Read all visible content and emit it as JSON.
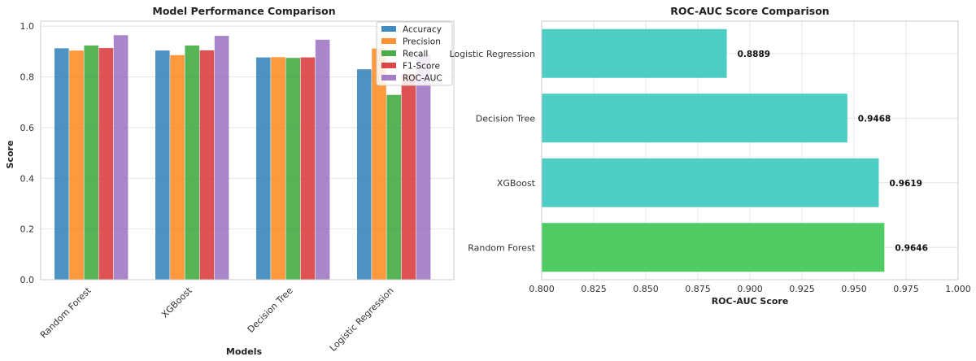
{
  "chart_data": [
    {
      "type": "bar",
      "title": "Model Performance Comparison",
      "xlabel": "Models",
      "ylabel": "Score",
      "ylim": [
        0,
        1.02
      ],
      "yticks": [
        "0.0",
        "0.2",
        "0.4",
        "0.6",
        "0.8",
        "1.0"
      ],
      "categories": [
        "Random Forest",
        "XGBoost",
        "Decision Tree",
        "Logistic Regression"
      ],
      "legend_position": "top-right",
      "grid": true,
      "series": [
        {
          "name": "Accuracy",
          "color": "#1f77b4",
          "values": [
            0.913,
            0.904,
            0.877,
            0.83
          ]
        },
        {
          "name": "Precision",
          "color": "#ff7f0e",
          "values": [
            0.904,
            0.886,
            0.878,
            0.912
          ]
        },
        {
          "name": "Recall",
          "color": "#2ca02c",
          "values": [
            0.924,
            0.924,
            0.875,
            0.729
          ]
        },
        {
          "name": "F1-Score",
          "color": "#d62728",
          "values": [
            0.914,
            0.905,
            0.877,
            0.812
          ]
        },
        {
          "name": "ROC-AUC",
          "color": "#9467bd",
          "values": [
            0.9646,
            0.9619,
            0.9468,
            0.8889
          ]
        }
      ]
    },
    {
      "type": "barh",
      "title": "ROC-AUC Score Comparison",
      "xlabel": "ROC-AUC Score",
      "ylabel": "",
      "xlim": [
        0.8,
        1.0
      ],
      "xticks": [
        "0.800",
        "0.825",
        "0.850",
        "0.875",
        "0.900",
        "0.925",
        "0.950",
        "0.975",
        "1.000"
      ],
      "categories": [
        "Random Forest",
        "XGBoost",
        "Decision Tree",
        "Logistic Regression"
      ],
      "values": [
        0.9646,
        0.9619,
        0.9468,
        0.8889
      ],
      "labels": [
        "0.9646",
        "0.9619",
        "0.9468",
        "0.8889"
      ],
      "colors": [
        "#4ecb63",
        "#4ecdc4",
        "#4ecdc4",
        "#4ecdc4"
      ],
      "grid": true
    }
  ]
}
